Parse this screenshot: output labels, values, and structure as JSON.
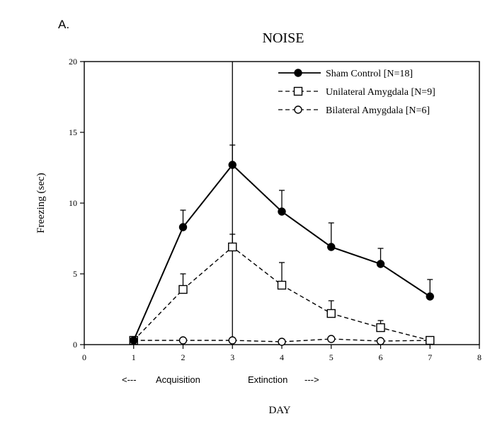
{
  "panel_label": "A.",
  "chart_data": {
    "type": "line",
    "title": "NOISE",
    "xlabel": "DAY",
    "ylabel": "Freezing (sec)",
    "xlim": [
      0,
      8
    ],
    "ylim": [
      0,
      20
    ],
    "xticks": [
      0,
      1,
      2,
      3,
      4,
      5,
      6,
      7,
      8
    ],
    "yticks": [
      0,
      5,
      10,
      15,
      20
    ],
    "grid": false,
    "legend_position": "top-right",
    "divider_x": 3,
    "phase_labels": {
      "left_arrow": "<---",
      "acquisition": "Acquisition",
      "extinction": "Extinction",
      "right_arrow": "--->"
    },
    "series": [
      {
        "name": "Sham Control [N=18]",
        "marker": "filled-circle",
        "line": "solid",
        "x": [
          1,
          2,
          3,
          4,
          5,
          6,
          7
        ],
        "values": [
          0.3,
          8.3,
          12.7,
          9.4,
          6.9,
          5.7,
          3.4
        ],
        "errors": [
          0,
          1.2,
          1.4,
          1.5,
          1.7,
          1.1,
          1.2
        ]
      },
      {
        "name": "Unilateral Amygdala [N=9]",
        "marker": "open-square",
        "line": "dashed",
        "x": [
          1,
          2,
          3,
          4,
          5,
          6,
          7
        ],
        "values": [
          0.3,
          3.9,
          6.9,
          4.2,
          2.2,
          1.2,
          0.3
        ],
        "errors": [
          0,
          1.1,
          0.9,
          1.6,
          0.9,
          0.5,
          0
        ]
      },
      {
        "name": "Bilateral Amygdala [N=6]",
        "marker": "open-circle",
        "line": "dashed",
        "x": [
          1,
          2,
          3,
          4,
          5,
          6,
          7
        ],
        "values": [
          0.3,
          0.3,
          0.3,
          0.2,
          0.4,
          0.25,
          0.3
        ],
        "errors": [
          0,
          0,
          0,
          0,
          0,
          0,
          0
        ]
      }
    ]
  }
}
